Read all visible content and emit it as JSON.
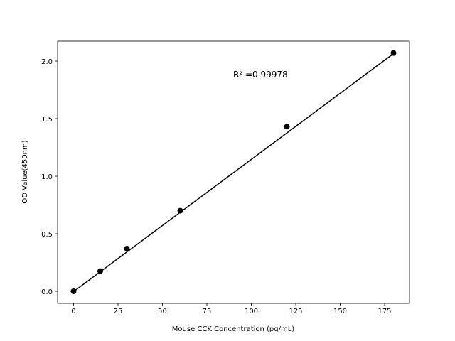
{
  "chart_data": {
    "type": "scatter",
    "x_label": "Mouse CCK Concentration (pg/mL)",
    "y_label": "OD Value(450nm)",
    "annotation": "R² =0.99978",
    "x": [
      0,
      15,
      30,
      60,
      120,
      180
    ],
    "values": [
      0.0,
      0.175,
      0.37,
      0.7,
      1.43,
      2.07
    ],
    "color": "#000000",
    "fit_line": {
      "x": [
        0,
        180
      ],
      "values": [
        -0.003,
        2.065
      ],
      "color": "#000000"
    },
    "xlim": [
      -9,
      189
    ],
    "ylim": [
      -0.105,
      2.173
    ],
    "xticks": [
      0,
      25,
      50,
      75,
      100,
      125,
      150,
      175
    ],
    "yticks": [
      {
        "value": 0,
        "label": "0.0"
      },
      {
        "value": 0.5,
        "label": "0.5"
      },
      {
        "value": 1,
        "label": "1.0"
      },
      {
        "value": 1.5,
        "label": "1.5"
      },
      {
        "value": 2,
        "label": "2.0"
      }
    ],
    "grid": false
  }
}
